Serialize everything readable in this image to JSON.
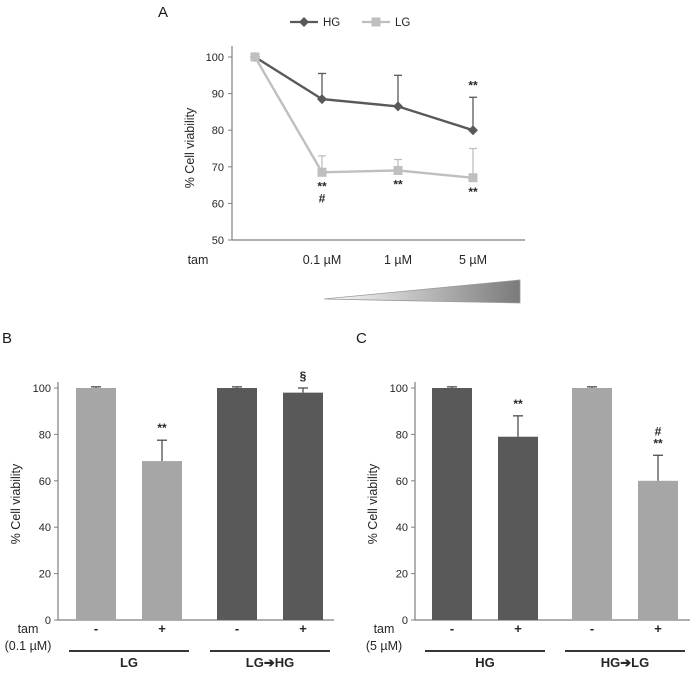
{
  "figure": {
    "panels": {
      "A": {
        "label": "A"
      },
      "B": {
        "label": "B"
      },
      "C": {
        "label": "C"
      }
    },
    "colors": {
      "dark_gray": "#595959",
      "light_gray": "#a6a6a6",
      "lg_line": "#bfbfbf"
    }
  },
  "chart_data": [
    {
      "panel": "A",
      "type": "line",
      "title": "",
      "ylabel": "% Cell viability",
      "x_axis_label": "tam",
      "x_tick_labels": [
        "",
        "0.1 µM",
        "1 µM",
        "5 µM"
      ],
      "ylim": [
        50,
        100
      ],
      "yticks": [
        50,
        60,
        70,
        80,
        90,
        100
      ],
      "grid": false,
      "legend_position": "top",
      "has_concentration_gradient_bar": true,
      "series": [
        {
          "name": "HG",
          "color": "#595959",
          "marker": "diamond",
          "values": [
            100,
            88.5,
            86.5,
            80
          ],
          "errors_up": [
            0,
            7,
            8.5,
            9
          ],
          "annotations": [
            "",
            "",
            "",
            "**"
          ],
          "annotation_side": "above"
        },
        {
          "name": "LG",
          "color": "#bfbfbf",
          "marker": "square",
          "values": [
            100,
            68.5,
            69,
            67
          ],
          "errors_up": [
            0,
            4.5,
            3,
            8
          ],
          "annotations": [
            "",
            "**\n#",
            "**",
            "**"
          ],
          "annotation_side": "below"
        }
      ]
    },
    {
      "panel": "B",
      "type": "bar",
      "title": "",
      "ylabel": "% Cell viability",
      "ylim": [
        0,
        100
      ],
      "yticks": [
        0,
        20,
        40,
        60,
        80,
        100
      ],
      "grid": false,
      "x_tick_labels": [
        "-",
        "+",
        "-",
        "+"
      ],
      "treatment_label": "tam",
      "treatment_sub": "(0.1 µM)",
      "groups": [
        {
          "label": "LG",
          "bars": [
            0,
            1
          ]
        },
        {
          "label": "LG➔HG",
          "bars": [
            2,
            3
          ]
        }
      ],
      "bars": [
        {
          "value": 100,
          "error": 0.5,
          "color": "#a6a6a6",
          "annotation": ""
        },
        {
          "value": 68.5,
          "error": 9,
          "color": "#a6a6a6",
          "annotation": "**"
        },
        {
          "value": 100,
          "error": 0.5,
          "color": "#595959",
          "annotation": ""
        },
        {
          "value": 98,
          "error": 2,
          "color": "#595959",
          "annotation": "§"
        }
      ]
    },
    {
      "panel": "C",
      "type": "bar",
      "title": "",
      "ylabel": "% Cell viability",
      "ylim": [
        0,
        100
      ],
      "yticks": [
        0,
        20,
        40,
        60,
        80,
        100
      ],
      "grid": false,
      "x_tick_labels": [
        "-",
        "+",
        "-",
        "+"
      ],
      "treatment_label": "tam",
      "treatment_sub": "(5 µM)",
      "groups": [
        {
          "label": "HG",
          "bars": [
            0,
            1
          ]
        },
        {
          "label": "HG➔LG",
          "bars": [
            2,
            3
          ]
        }
      ],
      "bars": [
        {
          "value": 100,
          "error": 0.5,
          "color": "#595959",
          "annotation": ""
        },
        {
          "value": 79,
          "error": 9,
          "color": "#595959",
          "annotation": "**"
        },
        {
          "value": 100,
          "error": 0.5,
          "color": "#a6a6a6",
          "annotation": ""
        },
        {
          "value": 60,
          "error": 11,
          "color": "#a6a6a6",
          "annotation": "#\n**"
        }
      ]
    }
  ]
}
